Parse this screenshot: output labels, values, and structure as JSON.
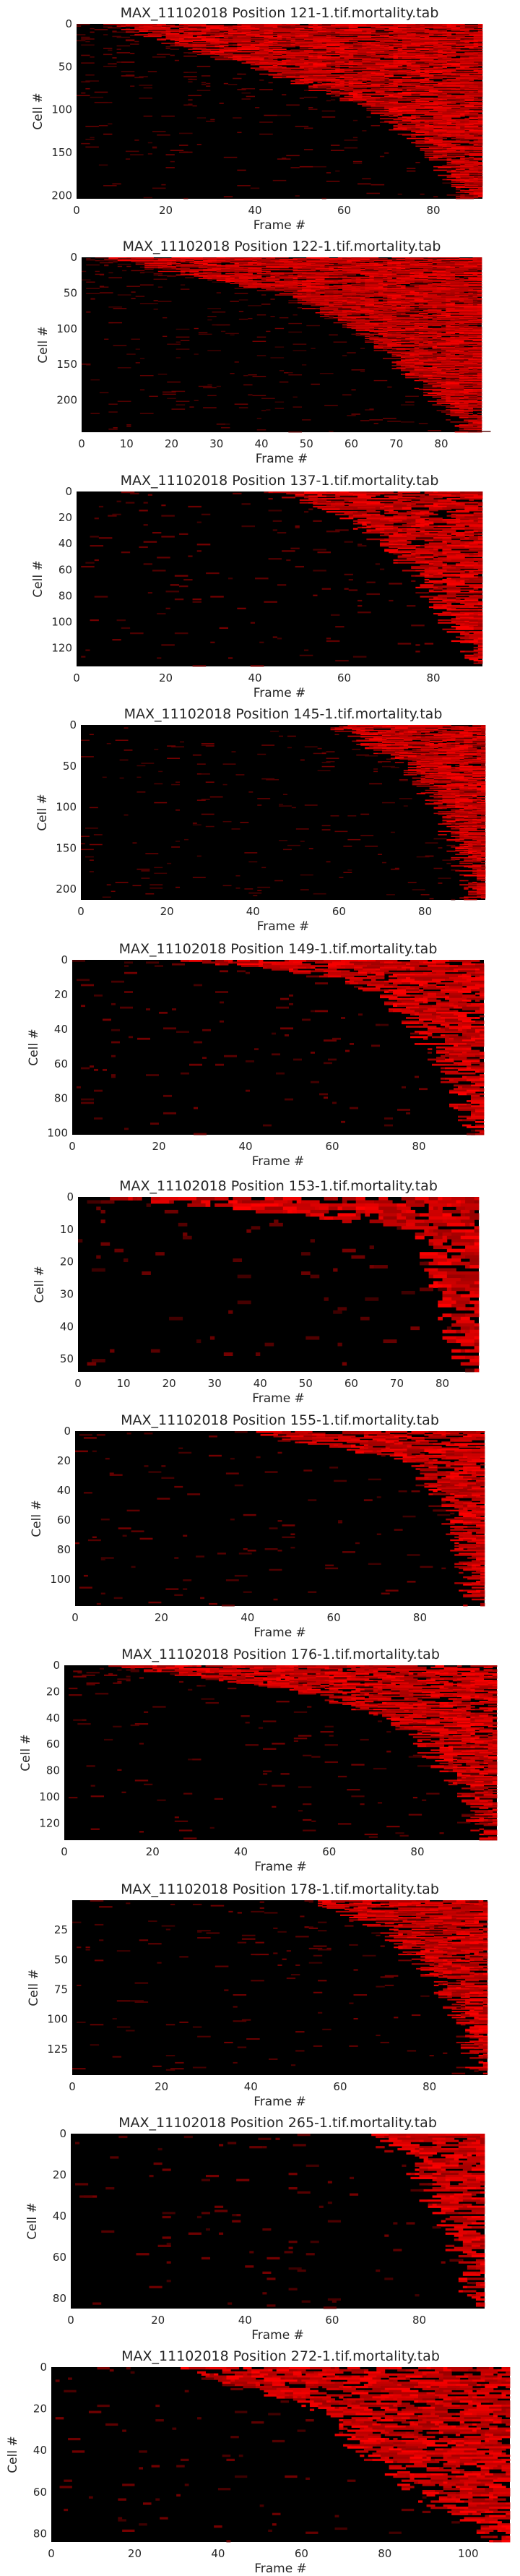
{
  "chart_data": [
    {
      "type": "heatmap",
      "title": "MAX_11102018 Position 121-1.tif.mortality.tab",
      "xlabel": "Frame #",
      "ylabel": "Cell #",
      "xlim": [
        0,
        91
      ],
      "ylim": [
        0,
        204
      ],
      "xticks": [
        0,
        20,
        40,
        60,
        80
      ],
      "yticks": [
        0,
        50,
        100,
        150,
        200
      ],
      "colormap": "black-to-red",
      "transition_points": [
        [
          0,
          8
        ],
        [
          50,
          40
        ],
        [
          100,
          68
        ],
        [
          150,
          80
        ],
        [
          200,
          88
        ]
      ],
      "seed": 121
    },
    {
      "type": "heatmap",
      "title": "MAX_11102018 Position 122-1.tif.mortality.tab",
      "xlabel": "Frame #",
      "ylabel": "Cell #",
      "xlim": [
        0,
        89
      ],
      "ylim": [
        0,
        245
      ],
      "xticks": [
        0,
        10,
        20,
        30,
        40,
        50,
        60,
        70,
        80
      ],
      "yticks": [
        0,
        50,
        100,
        150,
        200
      ],
      "colormap": "black-to-red",
      "transition_points": [
        [
          0,
          5
        ],
        [
          50,
          45
        ],
        [
          100,
          62
        ],
        [
          150,
          72
        ],
        [
          200,
          80
        ],
        [
          245,
          87
        ]
      ],
      "seed": 122
    },
    {
      "type": "heatmap",
      "title": "MAX_11102018 Position 137-1.tif.mortality.tab",
      "xlabel": "Frame #",
      "ylabel": "Cell #",
      "xlim": [
        0,
        91
      ],
      "ylim": [
        0,
        134
      ],
      "xticks": [
        0,
        20,
        40,
        60,
        80
      ],
      "yticks": [
        0,
        20,
        40,
        60,
        80,
        100,
        120
      ],
      "colormap": "black-to-red",
      "transition_points": [
        [
          0,
          45
        ],
        [
          20,
          62
        ],
        [
          40,
          70
        ],
        [
          60,
          76
        ],
        [
          80,
          80
        ],
        [
          100,
          84
        ],
        [
          134,
          90
        ]
      ],
      "seed": 137
    },
    {
      "type": "heatmap",
      "title": "MAX_11102018 Position 145-1.tif.mortality.tab",
      "xlabel": "Frame #",
      "ylabel": "Cell #",
      "xlim": [
        0,
        94
      ],
      "ylim": [
        0,
        213
      ],
      "xticks": [
        0,
        20,
        40,
        60,
        80
      ],
      "yticks": [
        0,
        50,
        100,
        150,
        200
      ],
      "colormap": "black-to-red",
      "transition_points": [
        [
          0,
          60
        ],
        [
          50,
          76
        ],
        [
          100,
          84
        ],
        [
          150,
          88
        ],
        [
          213,
          92
        ]
      ],
      "seed": 145
    },
    {
      "type": "heatmap",
      "title": "MAX_11102018 Position 149-1.tif.mortality.tab",
      "xlabel": "Frame #",
      "ylabel": "Cell #",
      "xlim": [
        0,
        95
      ],
      "ylim": [
        0,
        101
      ],
      "xticks": [
        0,
        20,
        40,
        60,
        80
      ],
      "yticks": [
        0,
        20,
        40,
        60,
        80,
        100
      ],
      "colormap": "black-to-red",
      "transition_points": [
        [
          0,
          25
        ],
        [
          10,
          62
        ],
        [
          20,
          72
        ],
        [
          40,
          80
        ],
        [
          60,
          86
        ],
        [
          80,
          90
        ],
        [
          101,
          93
        ]
      ],
      "seed": 149
    },
    {
      "type": "heatmap",
      "title": "MAX_11102018 Position 153-1.tif.mortality.tab",
      "xlabel": "Frame #",
      "ylabel": "Cell #",
      "xlim": [
        0,
        88
      ],
      "ylim": [
        0,
        54
      ],
      "xticks": [
        0,
        10,
        20,
        30,
        40,
        50,
        60,
        70,
        80
      ],
      "yticks": [
        0,
        10,
        20,
        30,
        40,
        50
      ],
      "colormap": "black-to-red",
      "transition_points": [
        [
          0,
          3
        ],
        [
          5,
          45
        ],
        [
          10,
          74
        ],
        [
          20,
          78
        ],
        [
          30,
          81
        ],
        [
          40,
          83
        ],
        [
          54,
          86
        ]
      ],
      "seed": 153
    },
    {
      "type": "heatmap",
      "title": "MAX_11102018 Position 155-1.tif.mortality.tab",
      "xlabel": "Frame #",
      "ylabel": "Cell #",
      "xlim": [
        0,
        95
      ],
      "ylim": [
        0,
        118
      ],
      "xticks": [
        0,
        20,
        40,
        60,
        80
      ],
      "yticks": [
        0,
        20,
        40,
        60,
        80,
        100
      ],
      "colormap": "black-to-red",
      "transition_points": [
        [
          0,
          40
        ],
        [
          20,
          78
        ],
        [
          40,
          84
        ],
        [
          60,
          88
        ],
        [
          80,
          90
        ],
        [
          118,
          93
        ]
      ],
      "seed": 155
    },
    {
      "type": "heatmap",
      "title": "MAX_11102018 Position 176-1.tif.mortality.tab",
      "xlabel": "Frame #",
      "ylabel": "Cell #",
      "xlim": [
        0,
        98
      ],
      "ylim": [
        0,
        133
      ],
      "xticks": [
        0,
        20,
        40,
        60,
        80
      ],
      "yticks": [
        0,
        20,
        40,
        60,
        80,
        100,
        120
      ],
      "colormap": "black-to-red",
      "transition_points": [
        [
          0,
          10
        ],
        [
          20,
          55
        ],
        [
          40,
          75
        ],
        [
          60,
          82
        ],
        [
          80,
          87
        ],
        [
          100,
          92
        ],
        [
          133,
          96
        ]
      ],
      "seed": 176
    },
    {
      "type": "heatmap",
      "title": "MAX_11102018 Position 178-1.tif.mortality.tab",
      "xlabel": "Frame #",
      "ylabel": "Cell #",
      "xlim": [
        0,
        93
      ],
      "ylim": [
        0,
        147
      ],
      "xticks": [
        0,
        20,
        40,
        60,
        80
      ],
      "yticks": [
        25,
        50,
        75,
        100,
        125
      ],
      "colormap": "black-to-red",
      "transition_points": [
        [
          0,
          55
        ],
        [
          25,
          70
        ],
        [
          50,
          78
        ],
        [
          75,
          84
        ],
        [
          100,
          88
        ],
        [
          147,
          92
        ]
      ],
      "seed": 178
    },
    {
      "type": "heatmap",
      "title": "MAX_11102018 Position 265-1.tif.mortality.tab",
      "xlabel": "Frame #",
      "ylabel": "Cell #",
      "xlim": [
        0,
        95
      ],
      "ylim": [
        0,
        85
      ],
      "xticks": [
        0,
        20,
        40,
        60,
        80
      ],
      "yticks": [
        0,
        20,
        40,
        60,
        80
      ],
      "colormap": "black-to-red",
      "transition_points": [
        [
          0,
          70
        ],
        [
          20,
          80
        ],
        [
          40,
          85
        ],
        [
          60,
          90
        ],
        [
          85,
          94
        ]
      ],
      "seed": 265
    },
    {
      "type": "heatmap",
      "title": "MAX_11102018 Position 272-1.tif.mortality.tab",
      "xlabel": "Frame #",
      "ylabel": "Cell #",
      "xlim": [
        0,
        110
      ],
      "ylim": [
        0,
        84
      ],
      "xticks": [
        0,
        20,
        40,
        60,
        80,
        100
      ],
      "yticks": [
        0,
        20,
        40,
        60,
        80
      ],
      "colormap": "black-to-red",
      "transition_points": [
        [
          0,
          30
        ],
        [
          20,
          65
        ],
        [
          40,
          75
        ],
        [
          60,
          88
        ],
        [
          84,
          108
        ]
      ],
      "seed": 272
    }
  ]
}
